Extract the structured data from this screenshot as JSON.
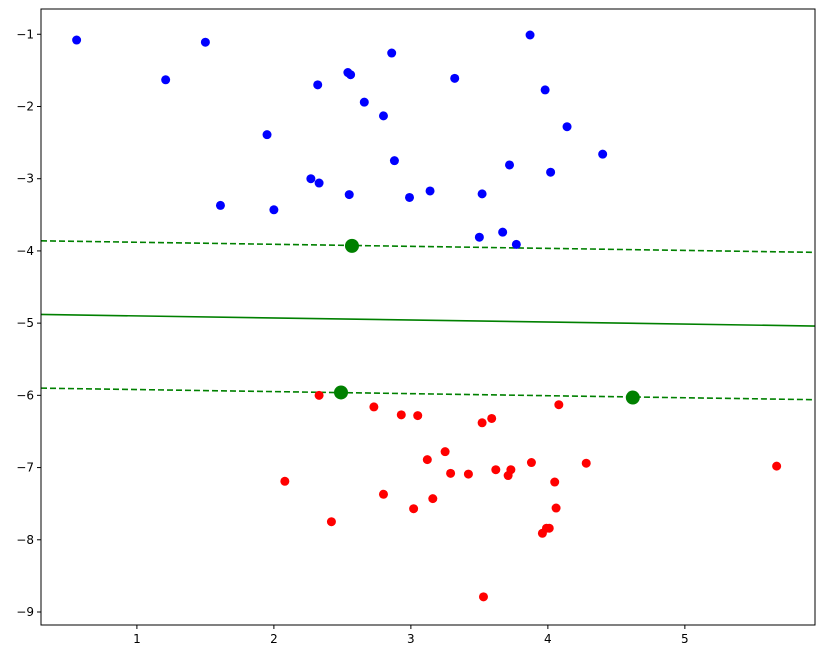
{
  "chart_data": {
    "type": "scatter",
    "title": "",
    "xlabel": "",
    "ylabel": "",
    "xlim": [
      0.3,
      5.95
    ],
    "ylim": [
      -9.18,
      -0.65
    ],
    "grid": false,
    "x_ticks": [
      1,
      2,
      3,
      4,
      5
    ],
    "y_ticks": [
      -1,
      -2,
      -3,
      -4,
      -5,
      -6,
      -7,
      -8,
      -9
    ],
    "x_tick_labels": [
      "1",
      "2",
      "3",
      "4",
      "5"
    ],
    "y_tick_labels": [
      "−1",
      "−2",
      "−3",
      "−4",
      "−5",
      "−6",
      "−7",
      "−8",
      "−9"
    ],
    "series": [
      {
        "color": "#0000ff",
        "points": [
          [
            0.56,
            -1.08
          ],
          [
            1.21,
            -1.63
          ],
          [
            1.5,
            -1.11
          ],
          [
            1.61,
            -3.37
          ],
          [
            1.95,
            -2.39
          ],
          [
            2.0,
            -3.43
          ],
          [
            2.27,
            -3.0
          ],
          [
            2.32,
            -1.7
          ],
          [
            2.33,
            -3.06
          ],
          [
            2.54,
            -1.53
          ],
          [
            2.56,
            -1.56
          ],
          [
            2.55,
            -3.22
          ],
          [
            2.66,
            -1.94
          ],
          [
            2.8,
            -2.13
          ],
          [
            2.86,
            -1.26
          ],
          [
            2.88,
            -2.75
          ],
          [
            2.99,
            -3.26
          ],
          [
            3.14,
            -3.17
          ],
          [
            3.32,
            -1.61
          ],
          [
            3.5,
            -3.81
          ],
          [
            3.52,
            -3.21
          ],
          [
            3.67,
            -3.74
          ],
          [
            3.72,
            -2.81
          ],
          [
            3.77,
            -3.91
          ],
          [
            3.87,
            -1.01
          ],
          [
            3.98,
            -1.77
          ],
          [
            4.02,
            -2.91
          ],
          [
            4.14,
            -2.28
          ],
          [
            4.4,
            -2.66
          ]
        ]
      },
      {
        "color": "#ff0000",
        "points": [
          [
            2.08,
            -7.19
          ],
          [
            2.33,
            -6.0
          ],
          [
            2.42,
            -7.75
          ],
          [
            2.73,
            -6.16
          ],
          [
            2.8,
            -7.37
          ],
          [
            2.93,
            -6.27
          ],
          [
            3.02,
            -7.57
          ],
          [
            3.05,
            -6.28
          ],
          [
            3.12,
            -6.89
          ],
          [
            3.16,
            -7.43
          ],
          [
            3.25,
            -6.78
          ],
          [
            3.29,
            -7.08
          ],
          [
            3.42,
            -7.09
          ],
          [
            3.52,
            -6.38
          ],
          [
            3.53,
            -8.79
          ],
          [
            3.59,
            -6.32
          ],
          [
            3.62,
            -7.03
          ],
          [
            3.71,
            -7.11
          ],
          [
            3.73,
            -7.03
          ],
          [
            3.88,
            -6.93
          ],
          [
            3.96,
            -7.91
          ],
          [
            3.99,
            -7.84
          ],
          [
            4.01,
            -7.84
          ],
          [
            4.05,
            -7.2
          ],
          [
            4.06,
            -7.56
          ],
          [
            4.08,
            -6.13
          ],
          [
            4.28,
            -6.94
          ],
          [
            5.67,
            -6.98
          ]
        ]
      }
    ],
    "support_vectors": {
      "color": "#008000",
      "points": [
        [
          2.57,
          -3.93
        ],
        [
          2.49,
          -5.96
        ],
        [
          4.62,
          -6.03
        ]
      ]
    },
    "lines": [
      {
        "style": "solid",
        "color": "#008000",
        "points": [
          [
            0.3,
            -4.88
          ],
          [
            5.95,
            -5.04
          ]
        ]
      },
      {
        "style": "dashed",
        "color": "#008000",
        "points": [
          [
            0.3,
            -3.86
          ],
          [
            5.95,
            -4.02
          ]
        ]
      },
      {
        "style": "dashed",
        "color": "#008000",
        "points": [
          [
            0.3,
            -5.9
          ],
          [
            5.95,
            -6.06
          ]
        ]
      }
    ]
  }
}
